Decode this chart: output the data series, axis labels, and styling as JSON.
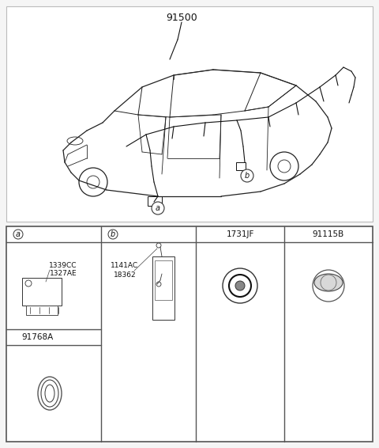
{
  "bg_color": "#f5f5f5",
  "white": "#ffffff",
  "black": "#000000",
  "gray_light": "#e8e8e8",
  "title_part": "91500",
  "label_a": "a",
  "label_b": "b",
  "cell_labels": {
    "a": "a",
    "b": "b",
    "c": "1731JF",
    "d": "91115B",
    "e": "91768A"
  },
  "part_codes_a": [
    "1339CC",
    "1327AE"
  ],
  "part_codes_b": [
    "1141AC",
    "18362"
  ],
  "table_border_color": "#555555",
  "line_color": "#222222",
  "font_size_label": 8,
  "font_size_code": 6.5,
  "font_size_title": 9
}
